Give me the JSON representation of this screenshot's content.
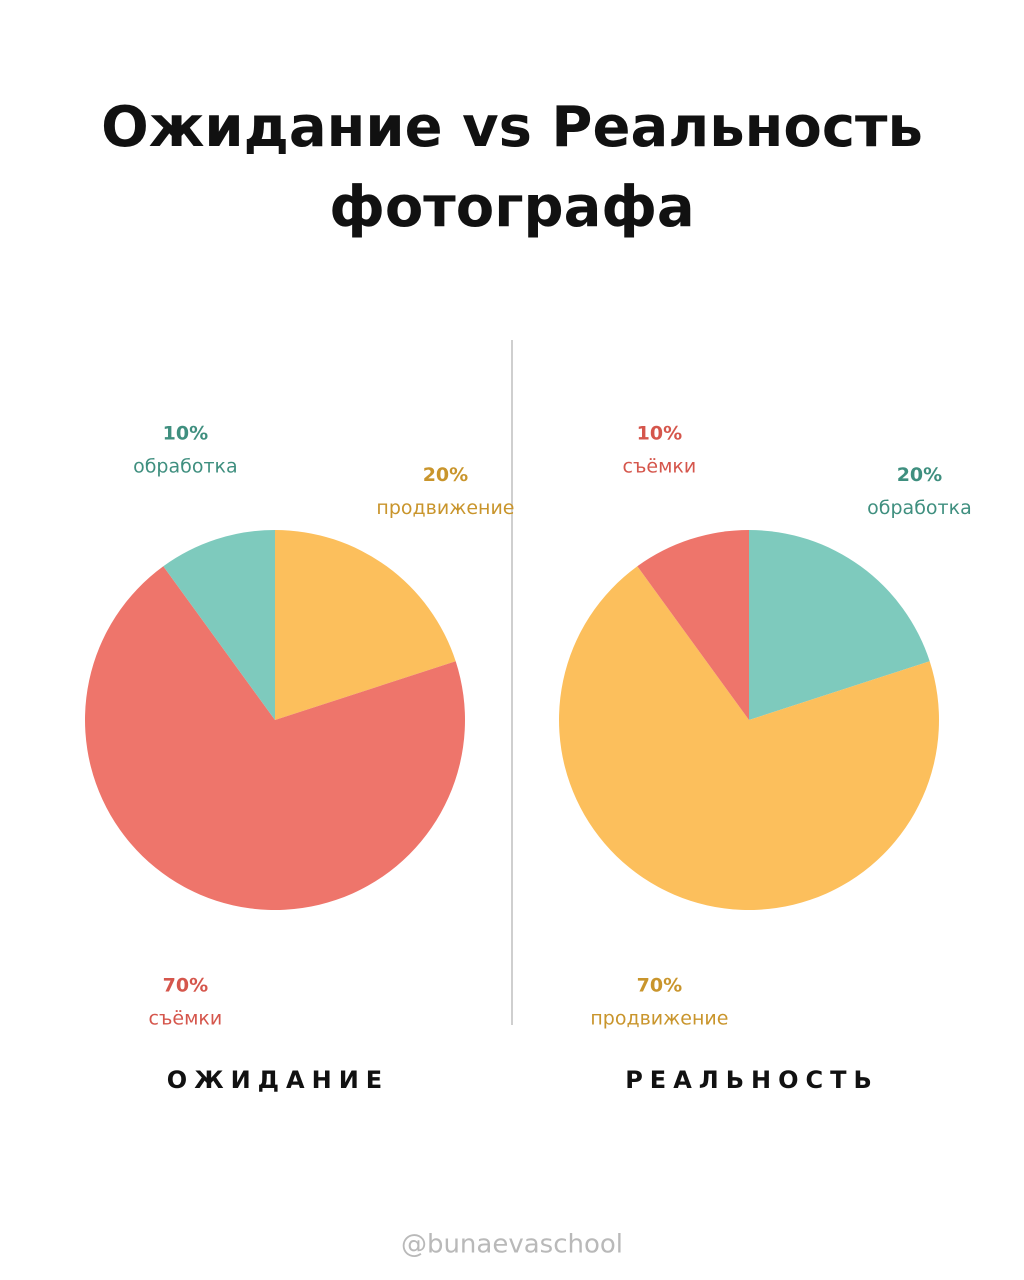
{
  "title": "Ожидание vs Реальность фотографа",
  "handle": "@bunaevaschool",
  "chart_data": [
    {
      "type": "pie",
      "title": "ОЖИДАНИЕ",
      "categories": [
        "продвижение",
        "съёмки",
        "обработка"
      ],
      "values": [
        20,
        70,
        10
      ],
      "value_labels": [
        "20%",
        "70%",
        "10%"
      ],
      "colors": [
        "#fcbf5c",
        "#ee756b",
        "#7ecabd"
      ],
      "label_colors": [
        "#c9952c",
        "#d5564c",
        "#3f8f7f"
      ]
    },
    {
      "type": "pie",
      "title": "РЕАЛЬНОСТЬ",
      "categories": [
        "обработка",
        "продвижение",
        "съёмки"
      ],
      "values": [
        20,
        70,
        10
      ],
      "value_labels": [
        "20%",
        "70%",
        "10%"
      ],
      "colors": [
        "#7ecabd",
        "#fcbf5c",
        "#ee756b"
      ],
      "label_colors": [
        "#3f8f7f",
        "#c9952c",
        "#d5564c"
      ]
    }
  ]
}
